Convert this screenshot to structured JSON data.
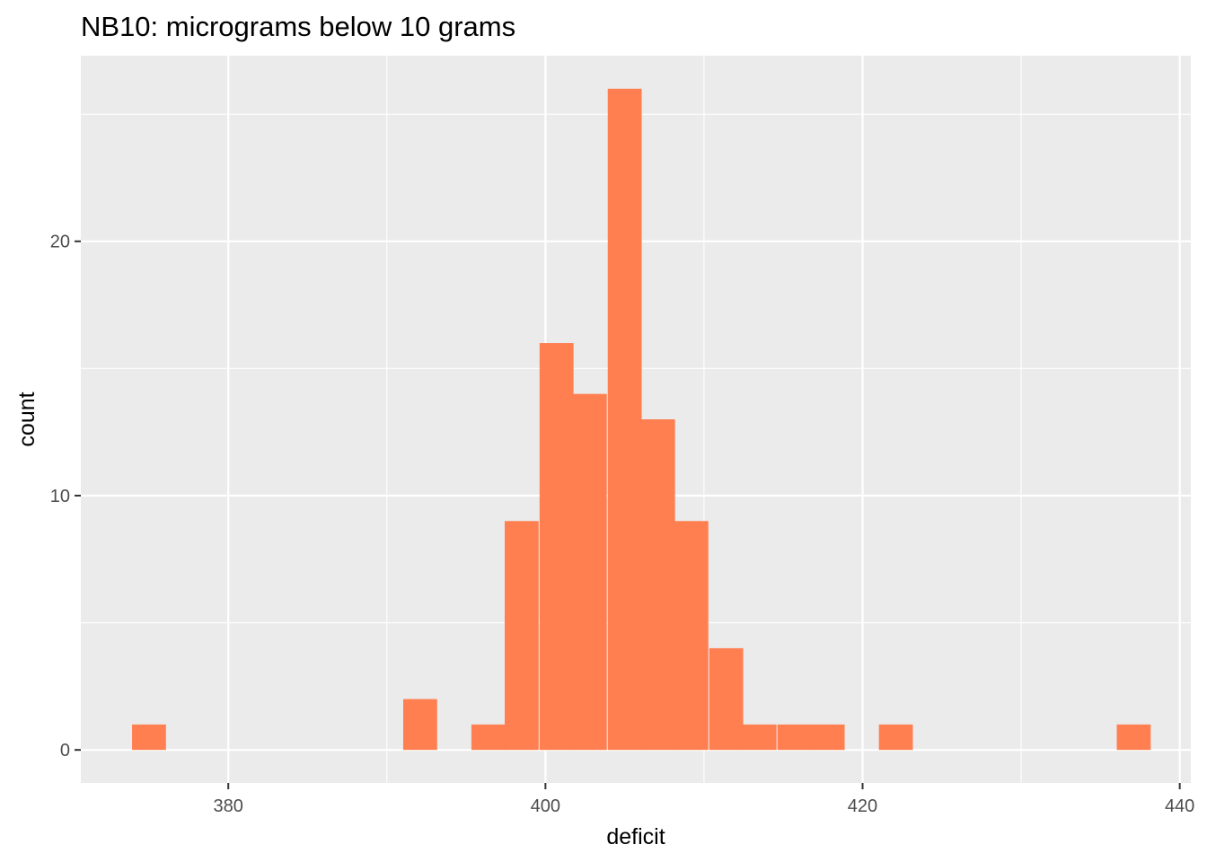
{
  "chart_data": {
    "type": "bar",
    "title": "NB10: micrograms below 10 grams",
    "xlabel": "deficit",
    "ylabel": "count",
    "xlim": [
      370.7,
      440.7
    ],
    "ylim": [
      -1.3,
      27.3
    ],
    "x_ticks": [
      380,
      400,
      420,
      440
    ],
    "x_tick_labels": [
      "380",
      "400",
      "420",
      "440"
    ],
    "y_ticks": [
      0,
      10,
      20
    ],
    "y_tick_labels": [
      "0",
      "10",
      "20"
    ],
    "bin_width": 2.14,
    "bins": [
      {
        "x": 375.0,
        "count": 1
      },
      {
        "x": 392.1,
        "count": 2
      },
      {
        "x": 396.4,
        "count": 1
      },
      {
        "x": 398.5,
        "count": 9
      },
      {
        "x": 400.7,
        "count": 16
      },
      {
        "x": 402.8,
        "count": 14
      },
      {
        "x": 405.0,
        "count": 26
      },
      {
        "x": 407.1,
        "count": 13
      },
      {
        "x": 409.2,
        "count": 9
      },
      {
        "x": 411.4,
        "count": 4
      },
      {
        "x": 413.5,
        "count": 1
      },
      {
        "x": 415.7,
        "count": 1
      },
      {
        "x": 417.8,
        "count": 1
      },
      {
        "x": 422.1,
        "count": 1
      },
      {
        "x": 437.1,
        "count": 1
      }
    ],
    "grid": true,
    "legend": "none",
    "colors": {
      "bar": "#ff7f50",
      "panel": "#ebebeb",
      "grid": "#ffffff",
      "tick_label": "#4d4d4d",
      "tick_mark": "#333333"
    }
  }
}
